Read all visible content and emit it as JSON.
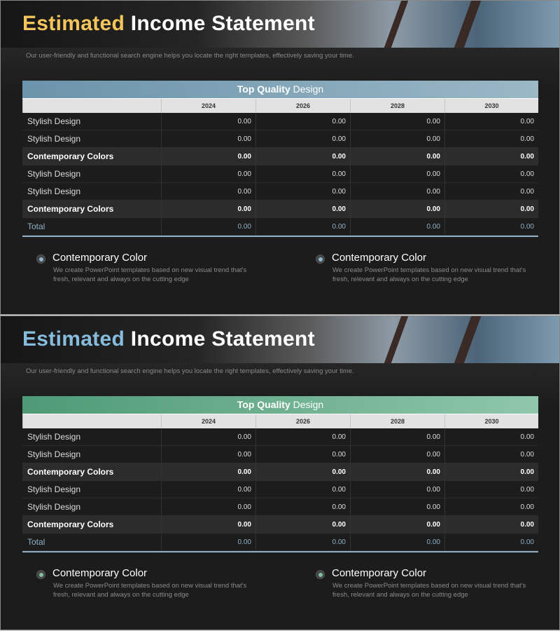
{
  "slides": [
    {
      "title_accent": "Estimated",
      "title_rest": "Income Statement",
      "accent_color": "#f4c55a",
      "header_gradient": [
        "#6b93aa",
        "#9ab8c6"
      ],
      "bullet_color": "#8fb6cf",
      "subtitle": "Our user-friendly and functional search engine helps you locate the right templates, effectively saving your time.",
      "table": {
        "heading_bold": "Top Quality",
        "heading_rest": "Design",
        "columns": [
          "",
          "2024",
          "2026",
          "2028",
          "2030"
        ],
        "rows": [
          {
            "label": "Stylish Design",
            "values": [
              "0.00",
              "0.00",
              "0.00",
              "0.00"
            ],
            "style": "normal"
          },
          {
            "label": "Stylish Design",
            "values": [
              "0.00",
              "0.00",
              "0.00",
              "0.00"
            ],
            "style": "normal"
          },
          {
            "label": "Contemporary Colors",
            "values": [
              "0.00",
              "0.00",
              "0.00",
              "0.00"
            ],
            "style": "bold"
          },
          {
            "label": "Stylish Design",
            "values": [
              "0.00",
              "0.00",
              "0.00",
              "0.00"
            ],
            "style": "normal"
          },
          {
            "label": "Stylish Design",
            "values": [
              "0.00",
              "0.00",
              "0.00",
              "0.00"
            ],
            "style": "normal"
          },
          {
            "label": "Contemporary Colors",
            "values": [
              "0.00",
              "0.00",
              "0.00",
              "0.00"
            ],
            "style": "bold"
          },
          {
            "label": "Total",
            "values": [
              "0.00",
              "0.00",
              "0.00",
              "0.00"
            ],
            "style": "total"
          }
        ]
      },
      "bullets": [
        {
          "heading": "Contemporary Color",
          "text": "We create PowerPoint templates based on new visual trend that's fresh, relevant and always on the cutting edge"
        },
        {
          "heading": "Contemporary Color",
          "text": "We create PowerPoint templates based on new visual trend that's fresh, relevant and always on the cutting edge"
        }
      ]
    },
    {
      "title_accent": "Estimated",
      "title_rest": "Income Statement",
      "accent_color": "#86bcdc",
      "header_gradient": [
        "#4e9a76",
        "#8fc7ab"
      ],
      "bullet_color": "#7ec0a0",
      "subtitle": "Our user-friendly and functional search engine helps you locate the right templates, effectively saving your time.",
      "table": {
        "heading_bold": "Top Quality",
        "heading_rest": "Design",
        "columns": [
          "",
          "2024",
          "2026",
          "2028",
          "2030"
        ],
        "rows": [
          {
            "label": "Stylish Design",
            "values": [
              "0.00",
              "0.00",
              "0.00",
              "0.00"
            ],
            "style": "normal"
          },
          {
            "label": "Stylish Design",
            "values": [
              "0.00",
              "0.00",
              "0.00",
              "0.00"
            ],
            "style": "normal"
          },
          {
            "label": "Contemporary Colors",
            "values": [
              "0.00",
              "0.00",
              "0.00",
              "0.00"
            ],
            "style": "bold"
          },
          {
            "label": "Stylish Design",
            "values": [
              "0.00",
              "0.00",
              "0.00",
              "0.00"
            ],
            "style": "normal"
          },
          {
            "label": "Stylish Design",
            "values": [
              "0.00",
              "0.00",
              "0.00",
              "0.00"
            ],
            "style": "normal"
          },
          {
            "label": "Contemporary Colors",
            "values": [
              "0.00",
              "0.00",
              "0.00",
              "0.00"
            ],
            "style": "bold"
          },
          {
            "label": "Total",
            "values": [
              "0.00",
              "0.00",
              "0.00",
              "0.00"
            ],
            "style": "total"
          }
        ]
      },
      "bullets": [
        {
          "heading": "Contemporary Color",
          "text": "We create PowerPoint templates based on new visual trend that's fresh, relevant and always on the cutting edge"
        },
        {
          "heading": "Contemporary Color",
          "text": "We create PowerPoint templates based on new visual trend that's fresh, relevant and always on the cutting edge"
        }
      ]
    }
  ]
}
